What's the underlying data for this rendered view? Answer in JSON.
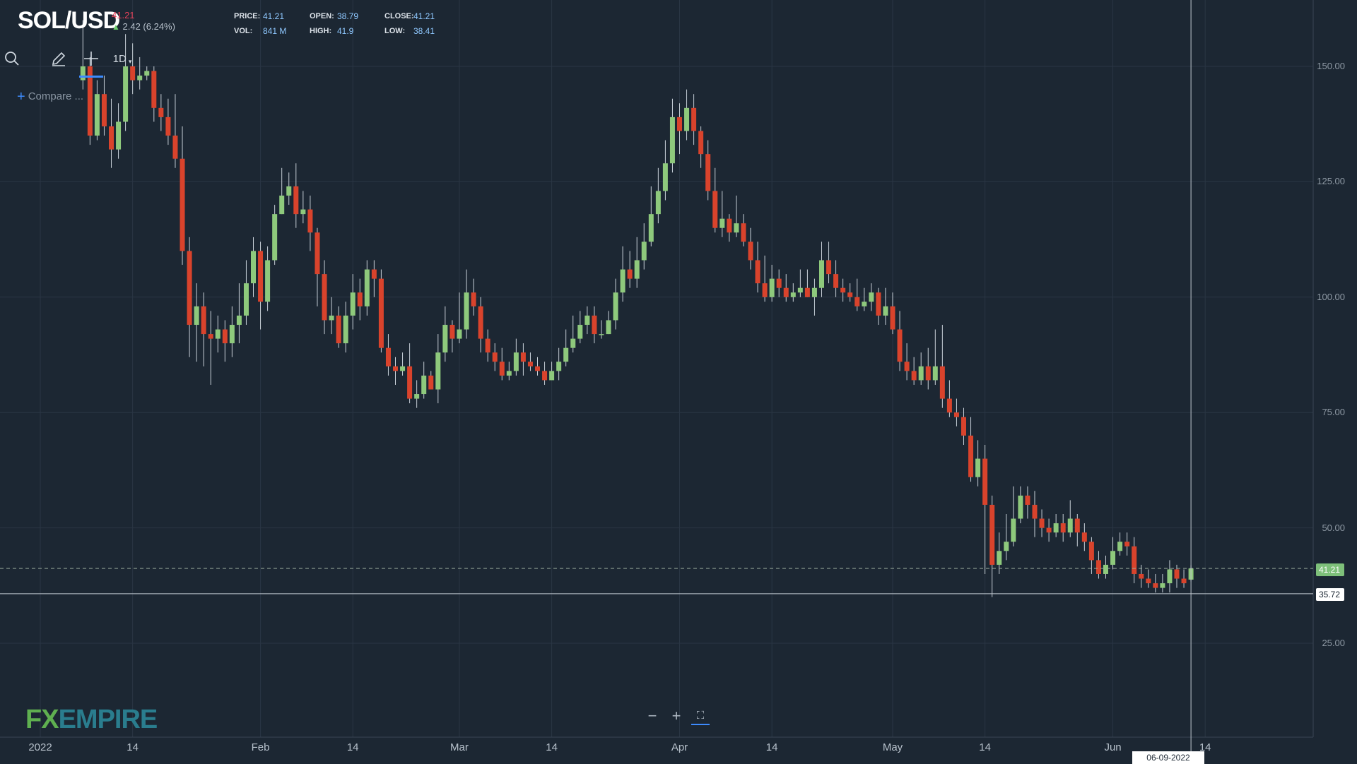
{
  "header": {
    "symbol": "SOL/USD",
    "price": "41.21",
    "change": "2.42 (6.24%)",
    "stats": {
      "price_label": "PRICE:",
      "price_value": "41.21",
      "open_label": "OPEN:",
      "open_value": "38.79",
      "close_label": "CLOSE:",
      "close_value": "41.21",
      "vol_label": "VOL:",
      "vol_value": "841 M",
      "high_label": "HIGH:",
      "high_value": "41.9",
      "low_label": "LOW:",
      "low_value": "38.41"
    }
  },
  "toolbar": {
    "search_icon": "search-icon",
    "draw_icon": "pencil-icon",
    "crosshair_icon": "crosshair-icon",
    "interval_label": "1D",
    "compare_label": "Compare ..."
  },
  "price_tags": {
    "current": "41.21",
    "crosshair": "35.72"
  },
  "crosshair_date": "06-09-2022",
  "logo": {
    "fx": "FX",
    "empire": "EMPIRE"
  },
  "zoom": {
    "minus": "−",
    "plus": "+",
    "fullscreen": "⛶"
  },
  "colors": {
    "up": "#8ec97c",
    "down": "#d9432c",
    "background": "#1c2733",
    "accent": "#3d8bfd"
  },
  "chart_data": {
    "type": "candlestick",
    "title": "SOL/USD",
    "ylim": [
      10,
      160
    ],
    "y_ticks": [
      25,
      50,
      75,
      100,
      125,
      150
    ],
    "y_tick_labels": [
      "25.00",
      "50.00",
      "75.00",
      "100.00",
      "125.00",
      "150.00"
    ],
    "x_tick_labels": [
      "2022",
      "14",
      "Feb",
      "14",
      "Mar",
      "14",
      "Apr",
      "14",
      "May",
      "14",
      "Jun",
      "14"
    ],
    "x_tick_days": [
      0,
      13,
      31,
      44,
      59,
      72,
      90,
      103,
      120,
      133,
      151,
      164
    ],
    "candles": [
      [
        147,
        150,
        160,
        145
      ],
      [
        150,
        135,
        152,
        133
      ],
      [
        135,
        144,
        147,
        134
      ],
      [
        144,
        137,
        148,
        135
      ],
      [
        137,
        132,
        143,
        128
      ],
      [
        132,
        138,
        142,
        130
      ],
      [
        138,
        150,
        157,
        136
      ],
      [
        150,
        147,
        155,
        144
      ],
      [
        147,
        148,
        152,
        145
      ],
      [
        148,
        149,
        150,
        147
      ],
      [
        149,
        141,
        150,
        138
      ],
      [
        141,
        139,
        144,
        136
      ],
      [
        139,
        135,
        143,
        133
      ],
      [
        135,
        130,
        144,
        128
      ],
      [
        130,
        110,
        137,
        107
      ],
      [
        110,
        94,
        113,
        87
      ],
      [
        94,
        98,
        103,
        86
      ],
      [
        98,
        92,
        101,
        85
      ],
      [
        92,
        91,
        97,
        81
      ],
      [
        91,
        93,
        96,
        88
      ],
      [
        93,
        90,
        95,
        86
      ],
      [
        90,
        94,
        98,
        87
      ],
      [
        94,
        96,
        103,
        90
      ],
      [
        96,
        103,
        108,
        94
      ],
      [
        103,
        110,
        113,
        100
      ],
      [
        110,
        99,
        112,
        93
      ],
      [
        99,
        108,
        111,
        97
      ],
      [
        108,
        118,
        120,
        107
      ],
      [
        118,
        122,
        128,
        118
      ],
      [
        122,
        124,
        127,
        120
      ],
      [
        124,
        118,
        129,
        115
      ],
      [
        118,
        119,
        123,
        116
      ],
      [
        119,
        114,
        122,
        110
      ],
      [
        114,
        105,
        115,
        98
      ],
      [
        105,
        95,
        108,
        92
      ],
      [
        95,
        96,
        100,
        92
      ],
      [
        96,
        90,
        98,
        89
      ],
      [
        90,
        96,
        99,
        88
      ],
      [
        96,
        101,
        105,
        93
      ],
      [
        101,
        98,
        104,
        95
      ],
      [
        98,
        106,
        108,
        96
      ],
      [
        106,
        104,
        108,
        100
      ],
      [
        104,
        89,
        106,
        88
      ],
      [
        89,
        85,
        92,
        83
      ],
      [
        85,
        84,
        87,
        81
      ],
      [
        84,
        85,
        88,
        83
      ],
      [
        85,
        78,
        90,
        77
      ],
      [
        78,
        79,
        82,
        76
      ],
      [
        79,
        83,
        86,
        78
      ],
      [
        83,
        80,
        84,
        80
      ],
      [
        80,
        88,
        92,
        77
      ],
      [
        88,
        94,
        98,
        86
      ],
      [
        94,
        91,
        95,
        88
      ],
      [
        91,
        93,
        101,
        90
      ],
      [
        93,
        101,
        106,
        91
      ],
      [
        101,
        98,
        104,
        96
      ],
      [
        98,
        91,
        100,
        88
      ],
      [
        91,
        88,
        93,
        86
      ],
      [
        88,
        86,
        90,
        84
      ],
      [
        86,
        83,
        89,
        82
      ],
      [
        83,
        84,
        86,
        82
      ],
      [
        84,
        88,
        91,
        83
      ],
      [
        88,
        86,
        90,
        83
      ],
      [
        86,
        85,
        88,
        84
      ],
      [
        85,
        84,
        87,
        83
      ],
      [
        84,
        82,
        86,
        81
      ],
      [
        82,
        84,
        86,
        82
      ],
      [
        84,
        86,
        89,
        82
      ],
      [
        86,
        89,
        93,
        85
      ],
      [
        89,
        91,
        96,
        88
      ],
      [
        91,
        94,
        97,
        90
      ],
      [
        94,
        96,
        98,
        92
      ],
      [
        96,
        92,
        98,
        90
      ],
      [
        92,
        92,
        95,
        91
      ],
      [
        92,
        95,
        97,
        92
      ],
      [
        95,
        101,
        104,
        93
      ],
      [
        101,
        106,
        111,
        99
      ],
      [
        106,
        104,
        110,
        102
      ],
      [
        104,
        108,
        113,
        102
      ],
      [
        108,
        112,
        116,
        106
      ],
      [
        112,
        118,
        124,
        111
      ],
      [
        118,
        123,
        128,
        116
      ],
      [
        123,
        129,
        134,
        121
      ],
      [
        129,
        139,
        143,
        127
      ],
      [
        139,
        136,
        142,
        131
      ],
      [
        136,
        141,
        145,
        134
      ],
      [
        141,
        136,
        144,
        133
      ],
      [
        136,
        131,
        137,
        128
      ],
      [
        131,
        123,
        134,
        121
      ],
      [
        123,
        115,
        128,
        114
      ],
      [
        115,
        117,
        123,
        113
      ],
      [
        117,
        114,
        118,
        112
      ],
      [
        114,
        116,
        122,
        113
      ],
      [
        116,
        112,
        118,
        111
      ],
      [
        112,
        108,
        115,
        106
      ],
      [
        108,
        103,
        112,
        101
      ],
      [
        103,
        100,
        109,
        99
      ],
      [
        100,
        104,
        107,
        99
      ],
      [
        104,
        102,
        106,
        100
      ],
      [
        102,
        100,
        105,
        99
      ],
      [
        100,
        101,
        103,
        99
      ],
      [
        101,
        102,
        106,
        100
      ],
      [
        102,
        100,
        106,
        100
      ],
      [
        100,
        102,
        104,
        96
      ],
      [
        102,
        108,
        112,
        100
      ],
      [
        108,
        105,
        112,
        103
      ],
      [
        105,
        102,
        108,
        100
      ],
      [
        102,
        101,
        104,
        99
      ],
      [
        101,
        100,
        103,
        99
      ],
      [
        100,
        98,
        104,
        97
      ],
      [
        98,
        99,
        102,
        97
      ],
      [
        99,
        101,
        103,
        97
      ],
      [
        101,
        96,
        102,
        94
      ],
      [
        96,
        98,
        102,
        94
      ],
      [
        98,
        93,
        101,
        92
      ],
      [
        93,
        86,
        97,
        84
      ],
      [
        86,
        84,
        90,
        82
      ],
      [
        84,
        82,
        87,
        81
      ],
      [
        82,
        85,
        88,
        81
      ],
      [
        85,
        82,
        89,
        80
      ],
      [
        82,
        85,
        93,
        81
      ],
      [
        85,
        78,
        94,
        76
      ],
      [
        78,
        75,
        82,
        74
      ],
      [
        75,
        74,
        78,
        72
      ],
      [
        74,
        70,
        76,
        68
      ],
      [
        70,
        61,
        74,
        60
      ],
      [
        61,
        65,
        69,
        59
      ],
      [
        65,
        55,
        68,
        40
      ],
      [
        55,
        42,
        57,
        35
      ],
      [
        42,
        45,
        49,
        40
      ],
      [
        45,
        47,
        53,
        43
      ],
      [
        47,
        52,
        59,
        46
      ],
      [
        52,
        57,
        59,
        51
      ],
      [
        57,
        55,
        59,
        52
      ],
      [
        55,
        52,
        58,
        48
      ],
      [
        52,
        50,
        54,
        48
      ],
      [
        50,
        49,
        52,
        47
      ],
      [
        49,
        51,
        53,
        48
      ],
      [
        51,
        49,
        53,
        47
      ],
      [
        49,
        52,
        56,
        48
      ],
      [
        52,
        49,
        53,
        46
      ],
      [
        49,
        47,
        51,
        45
      ],
      [
        47,
        43,
        48,
        40
      ],
      [
        43,
        40,
        45,
        39
      ],
      [
        40,
        42,
        44,
        39
      ],
      [
        42,
        45,
        48,
        41
      ],
      [
        45,
        47,
        49,
        44
      ],
      [
        47,
        46,
        49,
        44
      ],
      [
        46,
        40,
        48,
        38
      ],
      [
        40,
        39,
        42,
        37
      ],
      [
        39,
        38,
        41,
        37
      ],
      [
        38,
        37,
        40,
        36
      ],
      [
        37,
        38,
        40,
        36
      ],
      [
        38,
        41,
        43,
        36
      ],
      [
        41,
        39,
        42,
        37
      ],
      [
        39,
        38,
        41,
        37
      ],
      [
        38.79,
        41.21,
        41.9,
        38.41
      ]
    ]
  }
}
